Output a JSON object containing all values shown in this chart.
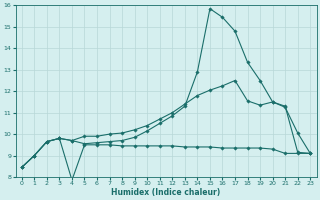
{
  "xlabel": "Humidex (Indice chaleur)",
  "bg_color": "#d5efef",
  "grid_color": "#b8d8d8",
  "line_color": "#1a6e6a",
  "xlim": [
    -0.5,
    23.5
  ],
  "ylim": [
    8,
    16
  ],
  "yticks": [
    8,
    9,
    10,
    11,
    12,
    13,
    14,
    15,
    16
  ],
  "xticks": [
    0,
    1,
    2,
    3,
    4,
    5,
    6,
    7,
    8,
    9,
    10,
    11,
    12,
    13,
    14,
    15,
    16,
    17,
    18,
    19,
    20,
    21,
    22,
    23
  ],
  "curve1_x": [
    0,
    1,
    2,
    3,
    4,
    5,
    6,
    7,
    8,
    9,
    10,
    11,
    12,
    13,
    14,
    15,
    16,
    17,
    18,
    19,
    20,
    21,
    22,
    23
  ],
  "curve1_y": [
    8.45,
    9.0,
    9.65,
    9.8,
    7.85,
    9.5,
    9.5,
    9.5,
    9.45,
    9.45,
    9.45,
    9.45,
    9.45,
    9.4,
    9.4,
    9.4,
    9.35,
    9.35,
    9.35,
    9.35,
    9.3,
    9.1,
    9.1,
    9.1
  ],
  "curve2_x": [
    0,
    1,
    2,
    3,
    4,
    5,
    6,
    7,
    8,
    9,
    10,
    11,
    12,
    13,
    14,
    15,
    16,
    17,
    18,
    19,
    20,
    21,
    22,
    23
  ],
  "curve2_y": [
    8.45,
    9.0,
    9.65,
    9.8,
    9.7,
    9.9,
    9.9,
    10.0,
    10.05,
    10.2,
    10.4,
    10.7,
    11.0,
    11.4,
    11.8,
    12.05,
    12.25,
    12.5,
    11.55,
    11.35,
    11.5,
    11.25,
    10.05,
    9.1
  ],
  "curve3_x": [
    0,
    1,
    2,
    3,
    4,
    5,
    6,
    7,
    8,
    9,
    10,
    11,
    12,
    13,
    14,
    15,
    16,
    17,
    18,
    19,
    20,
    21,
    22,
    23
  ],
  "curve3_y": [
    8.45,
    9.0,
    9.65,
    9.8,
    9.7,
    9.55,
    9.6,
    9.65,
    9.7,
    9.85,
    10.15,
    10.5,
    10.85,
    11.3,
    12.9,
    15.85,
    15.45,
    14.8,
    13.35,
    12.5,
    11.5,
    11.3,
    9.15,
    9.1
  ]
}
